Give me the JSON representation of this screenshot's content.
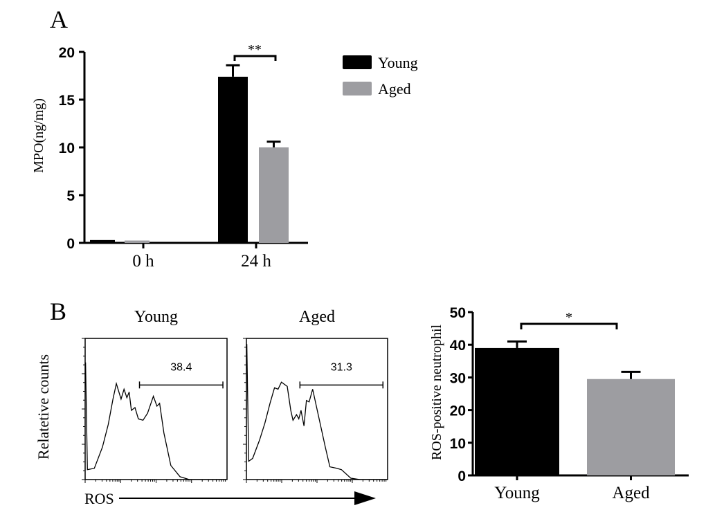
{
  "chart_data": [
    {
      "panel": "A",
      "type": "bar",
      "ylabel": "MPO(ng/mg)",
      "ylim": [
        0,
        20
      ],
      "yticks": [
        "0",
        "5",
        "10",
        "15",
        "20"
      ],
      "categories": [
        "0 h",
        "24 h"
      ],
      "series": [
        {
          "name": "Young",
          "color": "#000000",
          "values": [
            0.3,
            17.4
          ],
          "errors": [
            0.05,
            1.2
          ]
        },
        {
          "name": "Aged",
          "color": "#9d9da1",
          "values": [
            0.25,
            10.0
          ],
          "errors": [
            0.05,
            0.6
          ]
        }
      ],
      "significance": [
        {
          "category": "24 h",
          "label": "**"
        }
      ],
      "legend": "top-right"
    },
    {
      "panel": "B",
      "type": "line",
      "subtype": "flow-histogram",
      "ylabel": "Relatetive counts",
      "xlabel": "ROS",
      "histograms": [
        {
          "title": "Young",
          "gate_label": "38.4",
          "gate": [
            383,
            971
          ],
          "gate_level": 67,
          "x": [
            3,
            16,
            65,
            122,
            163,
            196,
            220,
            253,
            274,
            294,
            310,
            326,
            351,
            375,
            408,
            440,
            481,
            506,
            525,
            555,
            604,
            669,
            734,
            995
          ],
          "y": [
            83,
            7,
            8,
            23,
            39,
            57,
            68,
            57,
            64,
            58,
            62,
            49,
            51,
            43,
            42,
            47,
            59,
            52,
            54,
            33,
            10,
            2,
            0,
            0
          ]
        },
        {
          "title": "Aged",
          "gate_label": "31.3",
          "gate": [
            379,
            967
          ],
          "gate_level": 67,
          "x": [
            3,
            16,
            44,
            93,
            131,
            167,
            199,
            224,
            248,
            289,
            314,
            330,
            355,
            371,
            387,
            408,
            425,
            444,
            469,
            493,
            526,
            559,
            591,
            641,
            673,
            739,
            804,
            1000
          ],
          "y": [
            96,
            13,
            15,
            28,
            40,
            54,
            65,
            64,
            69,
            66,
            49,
            42,
            46,
            43,
            49,
            38,
            56,
            55,
            64,
            53,
            38,
            23,
            9,
            8,
            7,
            1,
            0,
            0
          ]
        }
      ]
    },
    {
      "panel": "B",
      "type": "bar",
      "ylabel": "ROS-positive neutrophil",
      "ylim": [
        0,
        50
      ],
      "yticks": [
        "0",
        "10",
        "20",
        "30",
        "40",
        "50"
      ],
      "categories": [
        "Young",
        "Aged"
      ],
      "values": [
        39.0,
        29.5
      ],
      "errors": [
        2.0,
        2.2
      ],
      "colors": [
        "#000000",
        "#9d9da1"
      ],
      "significance": [
        {
          "between": [
            "Young",
            "Aged"
          ],
          "label": "*"
        }
      ]
    }
  ],
  "panel_labels": [
    "A",
    "B"
  ]
}
